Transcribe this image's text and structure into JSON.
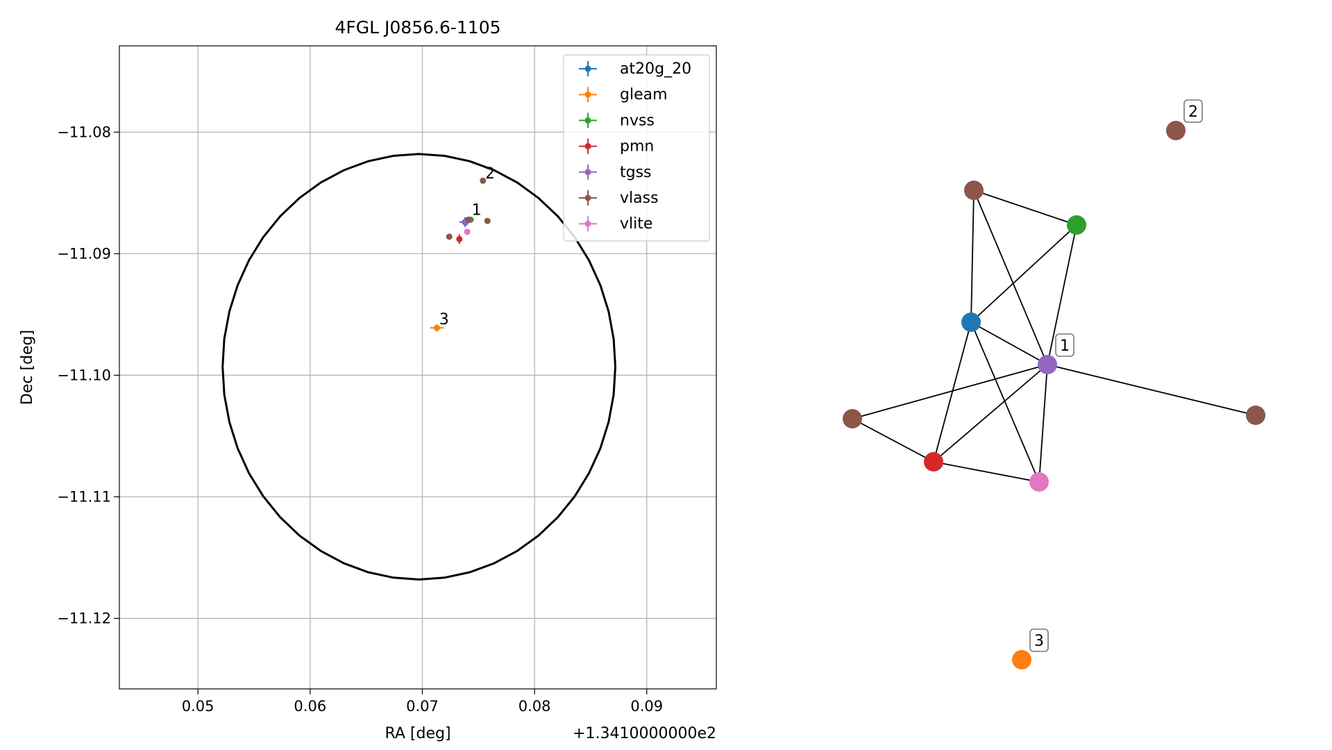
{
  "chart_data": [
    {
      "type": "scatter",
      "title": "4FGL J0856.6-1105",
      "xlabel": "RA [deg]",
      "ylabel": "Dec [deg]",
      "x_offset_label": "+1.3410000000e2",
      "xlim": [
        0.043,
        0.0962
      ],
      "ylim": [
        -11.1258,
        -11.0729
      ],
      "xticks": [
        0.05,
        0.06,
        0.07,
        0.08,
        0.09
      ],
      "xtick_labels": [
        "0.05",
        "0.06",
        "0.07",
        "0.08",
        "0.09"
      ],
      "yticks": [
        -11.08,
        -11.09,
        -11.1,
        -11.11,
        -11.12
      ],
      "ytick_labels": [
        "−11.08",
        "−11.09",
        "−11.10",
        "−11.11",
        "−11.12"
      ],
      "grid": true,
      "legend_position": "top-right",
      "ellipse": {
        "center_x": 0.0697,
        "center_y": -11.0993,
        "semi_x": 0.0175,
        "semi_y": 0.0175
      },
      "series": [
        {
          "name": "at20g_20",
          "color": "#1f77b4",
          "points": [
            {
              "x": 0.0738,
              "y": -11.0874,
              "xerr": 0.0005,
              "yerr": 0.0004
            }
          ]
        },
        {
          "name": "gleam",
          "color": "#ff7f0e",
          "points": [
            {
              "x": 0.0713,
              "y": -11.0961,
              "xerr": 0.0006,
              "yerr": 0.0003
            }
          ]
        },
        {
          "name": "nvss",
          "color": "#2ca02c",
          "points": [
            {
              "x": 0.0743,
              "y": -11.0872,
              "xerr": 0.0003,
              "yerr": 0.0002
            }
          ]
        },
        {
          "name": "pmn",
          "color": "#d62728",
          "points": [
            {
              "x": 0.0733,
              "y": -11.0888,
              "xerr": 0.0002,
              "yerr": 0.0004
            }
          ]
        },
        {
          "name": "tgss",
          "color": "#9467bd",
          "points": [
            {
              "x": 0.0739,
              "y": -11.0874,
              "xerr": 0.0005,
              "yerr": 0.0003
            }
          ]
        },
        {
          "name": "vlass",
          "color": "#8c564b",
          "points": [
            {
              "x": 0.0754,
              "y": -11.084,
              "xerr": 0.0001,
              "yerr": 0.0001
            },
            {
              "x": 0.0758,
              "y": -11.0873,
              "xerr": 0.0001,
              "yerr": 0.0001
            },
            {
              "x": 0.0741,
              "y": -11.0872,
              "xerr": 0.0001,
              "yerr": 0.0001
            },
            {
              "x": 0.0724,
              "y": -11.0886,
              "xerr": 0.0001,
              "yerr": 0.0001
            }
          ]
        },
        {
          "name": "vlite",
          "color": "#e377c2",
          "points": [
            {
              "x": 0.074,
              "y": -11.0882,
              "xerr": 0.0001,
              "yerr": 0.0001
            }
          ]
        }
      ],
      "annotations": [
        {
          "text": "1",
          "x": 0.0744,
          "y": -11.0868
        },
        {
          "text": "2",
          "x": 0.0756,
          "y": -11.0838
        },
        {
          "text": "3",
          "x": 0.0715,
          "y": -11.0958
        }
      ]
    },
    {
      "type": "network",
      "nodes": [
        {
          "id": "vlass_top",
          "color": "#8c564b"
        },
        {
          "id": "nvss",
          "color": "#2ca02c"
        },
        {
          "id": "at20g_20",
          "color": "#1f77b4"
        },
        {
          "id": "tgss",
          "color": "#9467bd",
          "label": "1"
        },
        {
          "id": "vlass_left",
          "color": "#8c564b"
        },
        {
          "id": "vlass_right",
          "color": "#8c564b"
        },
        {
          "id": "pmn",
          "color": "#d62728"
        },
        {
          "id": "vlite",
          "color": "#e377c2"
        },
        {
          "id": "vlass_iso",
          "color": "#8c564b",
          "label": "2"
        },
        {
          "id": "gleam",
          "color": "#ff7f0e",
          "label": "3"
        }
      ],
      "edges": [
        [
          "vlass_top",
          "nvss"
        ],
        [
          "vlass_top",
          "at20g_20"
        ],
        [
          "vlass_top",
          "tgss"
        ],
        [
          "nvss",
          "at20g_20"
        ],
        [
          "nvss",
          "tgss"
        ],
        [
          "at20g_20",
          "tgss"
        ],
        [
          "at20g_20",
          "pmn"
        ],
        [
          "at20g_20",
          "vlite"
        ],
        [
          "tgss",
          "vlass_left"
        ],
        [
          "tgss",
          "vlass_right"
        ],
        [
          "tgss",
          "pmn"
        ],
        [
          "tgss",
          "vlite"
        ],
        [
          "vlass_left",
          "pmn"
        ],
        [
          "pmn",
          "vlite"
        ]
      ]
    }
  ]
}
